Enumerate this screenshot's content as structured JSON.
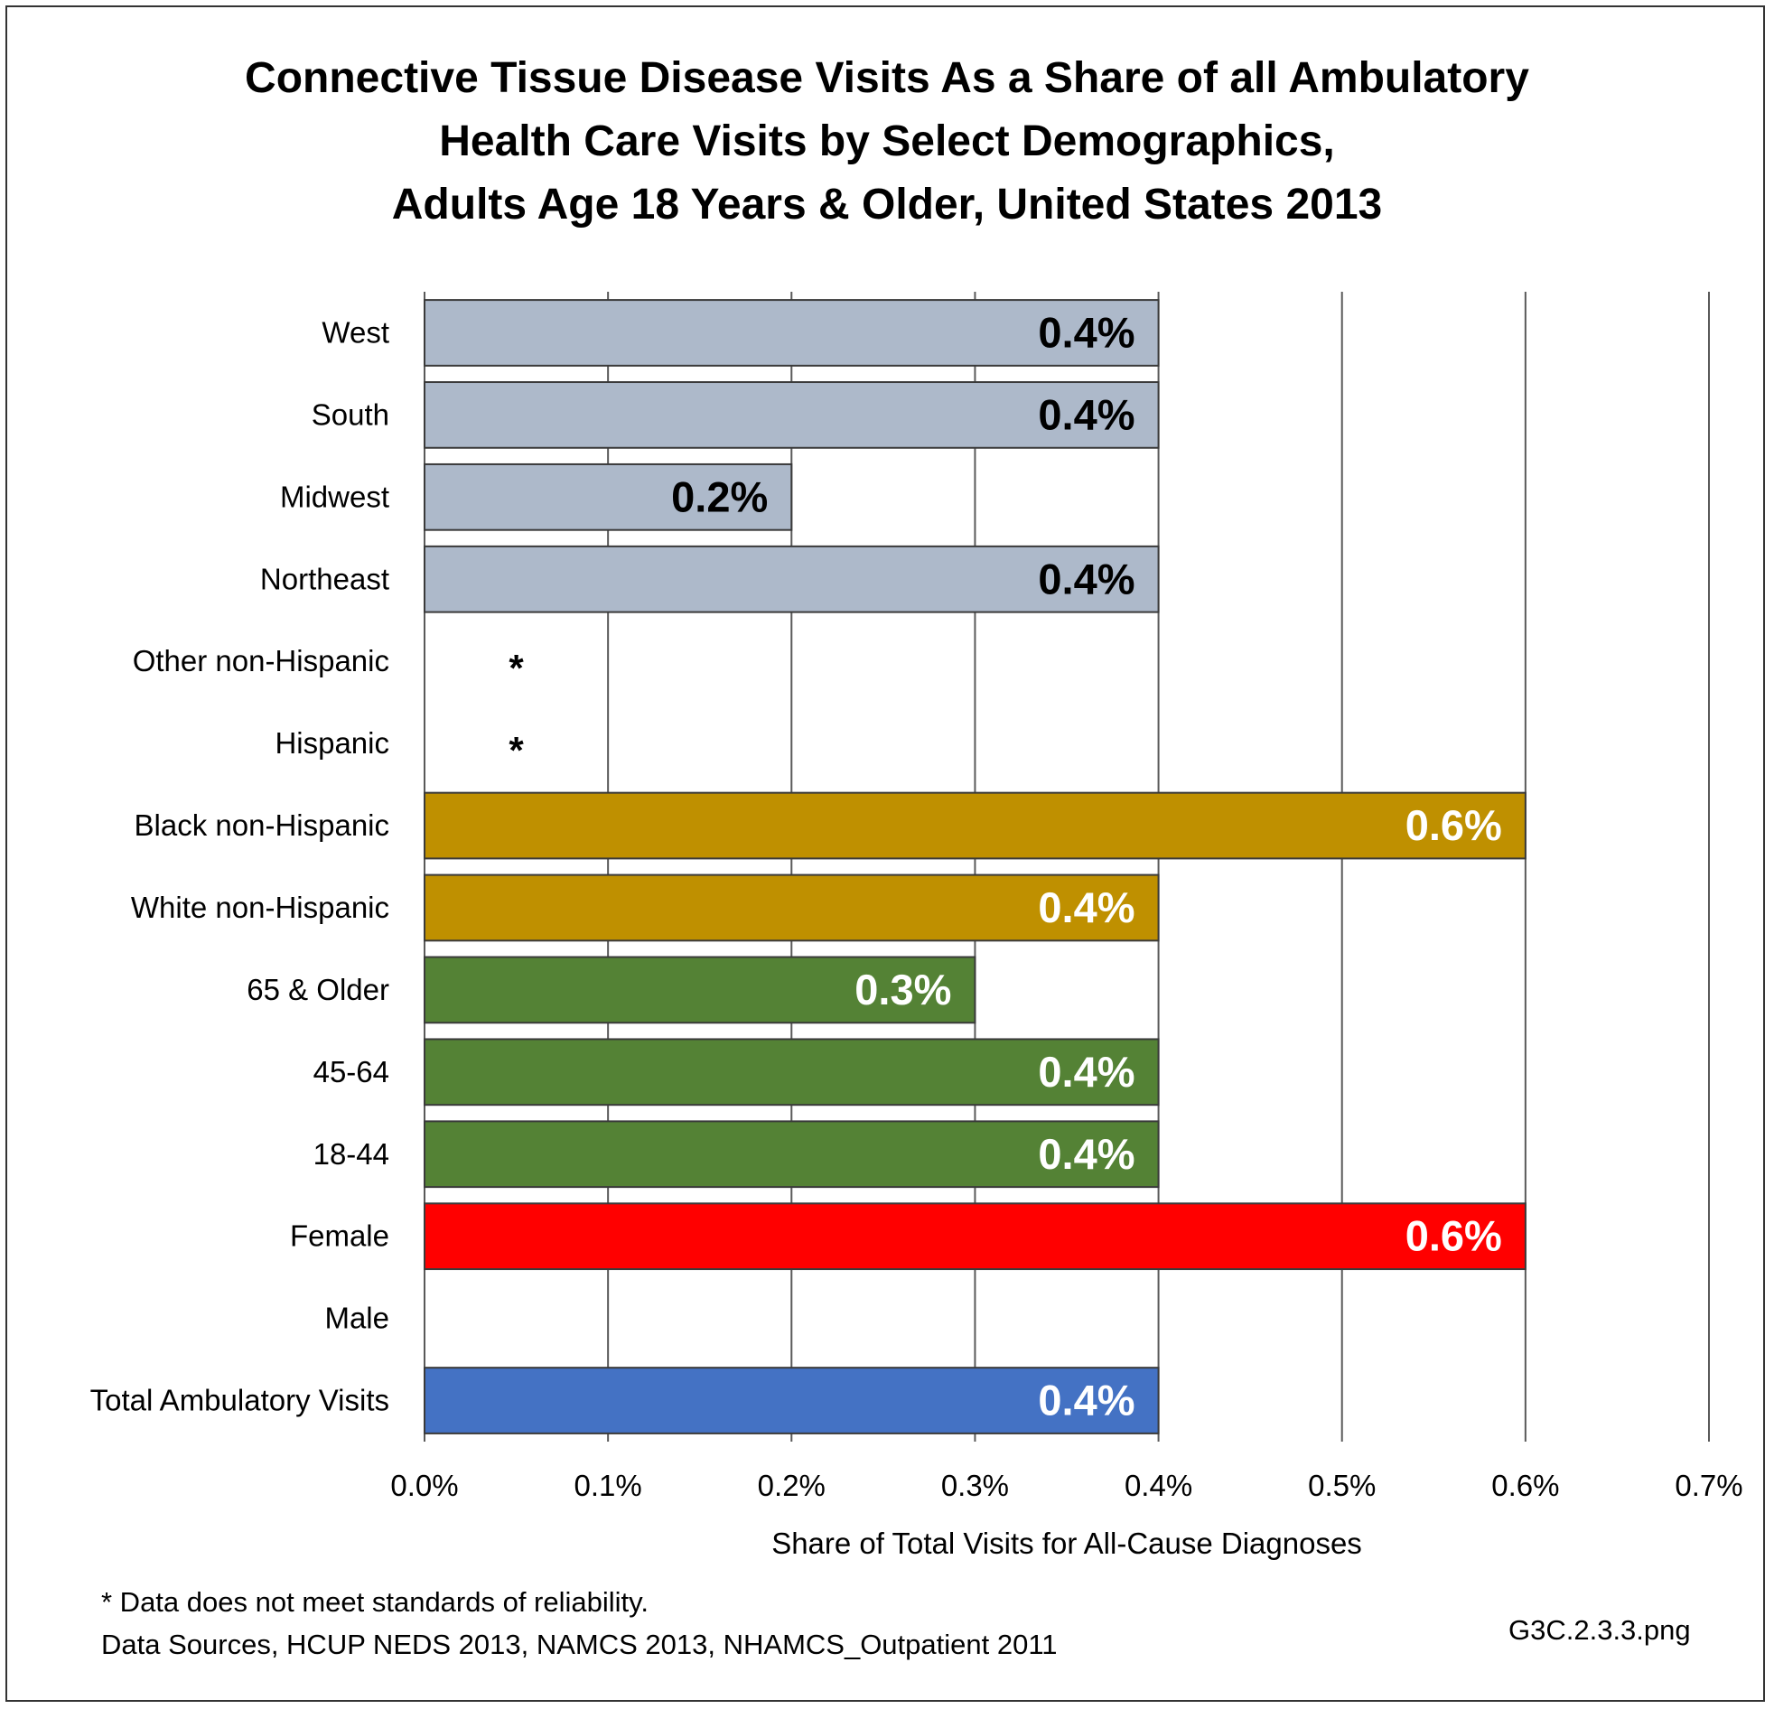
{
  "title": {
    "line1": "Connective Tissue Disease Visits As a Share of all Ambulatory",
    "line2": "Health Care Visits by Select Demographics,",
    "line3": "Adults Age 18 Years & Older, United States 2013"
  },
  "chart_data": {
    "type": "bar",
    "orientation": "horizontal",
    "title": "Connective Tissue Disease Visits As a Share of all Ambulatory Health Care Visits by Select Demographics, Adults Age 18 Years & Older, United States 2013",
    "xlabel": "Share of Total Visits for All-Cause Diagnoses",
    "ylabel": "",
    "xlim": [
      0,
      0.7
    ],
    "xticks": [
      "0.0%",
      "0.1%",
      "0.2%",
      "0.3%",
      "0.4%",
      "0.5%",
      "0.6%",
      "0.7%"
    ],
    "grid": true,
    "categories": [
      "West",
      "South",
      "Midwest",
      "Northeast",
      "Other non-Hispanic",
      "Hispanic",
      "Black non-Hispanic",
      "White non-Hispanic",
      "65 & Older",
      "45-64",
      "18-44",
      "Female",
      "Male",
      "Total Ambulatory Visits"
    ],
    "values": [
      0.4,
      0.4,
      0.2,
      0.4,
      null,
      null,
      0.6,
      0.4,
      0.3,
      0.4,
      0.4,
      0.6,
      null,
      0.4
    ],
    "data_labels": [
      "0.4%",
      "0.4%",
      "0.2%",
      "0.4%",
      "*",
      "*",
      "0.6%",
      "0.4%",
      "0.3%",
      "0.4%",
      "0.4%",
      "0.6%",
      "",
      "0.4%"
    ],
    "bar_colors": [
      "#adb9ca",
      "#adb9ca",
      "#adb9ca",
      "#adb9ca",
      "#ffffff",
      "#ffffff",
      "#bf9000",
      "#bf9000",
      "#548235",
      "#548235",
      "#548235",
      "#ff0000",
      "#ffffff",
      "#4472c4"
    ],
    "label_colors": [
      "#000000",
      "#000000",
      "#000000",
      "#000000",
      "#000000",
      "#000000",
      "#ffffff",
      "#ffffff",
      "#ffffff",
      "#ffffff",
      "#ffffff",
      "#ffffff",
      "#ffffff",
      "#ffffff"
    ]
  },
  "footnotes": {
    "reliability": "* Data does not meet standards of reliability.",
    "sources": "Data Sources, HCUP NEDS 2013, NAMCS 2013, NHAMCS_Outpatient 2011"
  },
  "file_id": "G3C.2.3.3.png"
}
